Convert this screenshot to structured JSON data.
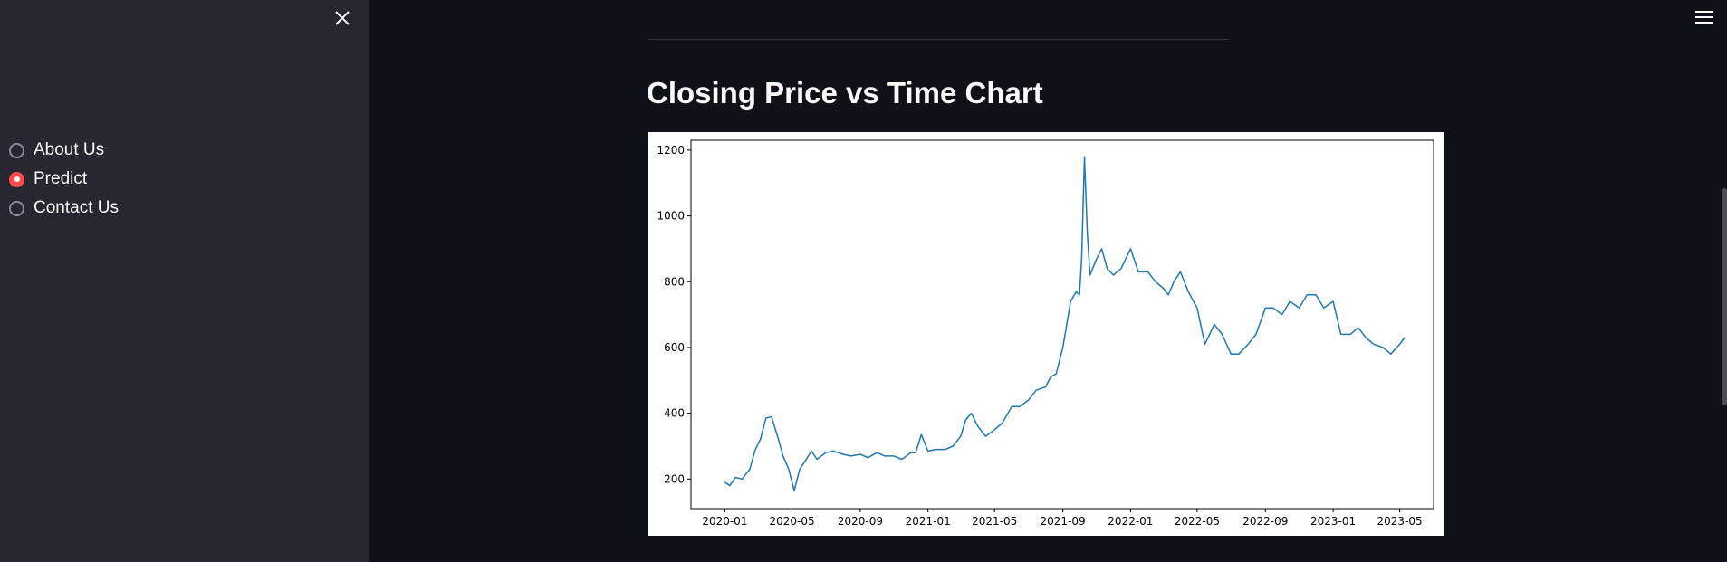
{
  "sidebar": {
    "close_icon": "close-icon",
    "options": [
      {
        "label": "About Us",
        "selected": false
      },
      {
        "label": "Predict",
        "selected": true
      },
      {
        "label": "Contact Us",
        "selected": false
      }
    ],
    "accent_color": "#ff4b4b"
  },
  "main": {
    "title": "Closing Price vs Time Chart",
    "menu_icon": "hamburger-menu-icon"
  },
  "chart_data": {
    "type": "line",
    "title": "",
    "xlabel": "",
    "ylabel": "",
    "x_ticks": [
      "2020-01",
      "2020-05",
      "2020-09",
      "2021-01",
      "2021-05",
      "2021-09",
      "2022-01",
      "2022-05",
      "2022-09",
      "2023-01",
      "2023-05"
    ],
    "y_ticks": [
      200,
      400,
      600,
      800,
      1000,
      1200
    ],
    "xlim": [
      "2019-11-01",
      "2023-07-01"
    ],
    "ylim": [
      110,
      1230
    ],
    "line_color": "#1f77b4",
    "grid": false,
    "series": [
      {
        "x": [
          "2020-01-01",
          "2020-01-10",
          "2020-01-20",
          "2020-02-01",
          "2020-02-15",
          "2020-02-25",
          "2020-03-05",
          "2020-03-15",
          "2020-03-25",
          "2020-04-05",
          "2020-04-15",
          "2020-04-25",
          "2020-05-05",
          "2020-05-15",
          "2020-05-25",
          "2020-06-05",
          "2020-06-15",
          "2020-07-01",
          "2020-07-15",
          "2020-08-01",
          "2020-08-15",
          "2020-09-01",
          "2020-09-15",
          "2020-10-01",
          "2020-10-15",
          "2020-11-01",
          "2020-11-15",
          "2020-12-01",
          "2020-12-10",
          "2020-12-20",
          "2021-01-01",
          "2021-01-15",
          "2021-02-01",
          "2021-02-15",
          "2021-03-01",
          "2021-03-10",
          "2021-03-20",
          "2021-04-01",
          "2021-04-15",
          "2021-05-01",
          "2021-05-15",
          "2021-06-01",
          "2021-06-15",
          "2021-07-01",
          "2021-07-15",
          "2021-08-01",
          "2021-08-10",
          "2021-08-20",
          "2021-09-01",
          "2021-09-05",
          "2021-09-15",
          "2021-09-25",
          "2021-10-01",
          "2021-10-05",
          "2021-10-10",
          "2021-10-15",
          "2021-10-20",
          "2021-11-01",
          "2021-11-10",
          "2021-11-20",
          "2021-12-01",
          "2021-12-15",
          "2022-01-01",
          "2022-01-15",
          "2022-02-01",
          "2022-02-15",
          "2022-03-01",
          "2022-03-10",
          "2022-03-20",
          "2022-04-01",
          "2022-04-15",
          "2022-05-01",
          "2022-05-15",
          "2022-06-01",
          "2022-06-15",
          "2022-07-01",
          "2022-07-15",
          "2022-08-01",
          "2022-08-15",
          "2022-09-01",
          "2022-09-15",
          "2022-10-01",
          "2022-10-15",
          "2022-11-01",
          "2022-11-15",
          "2022-12-01",
          "2022-12-15",
          "2023-01-01",
          "2023-01-15",
          "2023-02-01",
          "2023-02-15",
          "2023-03-01",
          "2023-03-15",
          "2023-04-01",
          "2023-04-15",
          "2023-05-01",
          "2023-05-10"
        ],
        "y": [
          190,
          180,
          205,
          200,
          230,
          290,
          320,
          385,
          390,
          330,
          270,
          230,
          165,
          230,
          255,
          285,
          260,
          280,
          285,
          275,
          270,
          275,
          265,
          280,
          270,
          270,
          260,
          280,
          280,
          335,
          285,
          290,
          290,
          300,
          330,
          380,
          400,
          360,
          330,
          350,
          370,
          420,
          420,
          440,
          470,
          480,
          510,
          520,
          600,
          640,
          740,
          770,
          760,
          870,
          1180,
          950,
          820,
          870,
          900,
          840,
          820,
          840,
          900,
          830,
          830,
          800,
          780,
          760,
          800,
          830,
          770,
          720,
          610,
          670,
          640,
          580,
          580,
          610,
          640,
          720,
          720,
          700,
          740,
          720,
          760,
          760,
          720,
          740,
          640,
          640,
          660,
          630,
          610,
          600,
          580,
          610,
          630
        ]
      }
    ]
  }
}
